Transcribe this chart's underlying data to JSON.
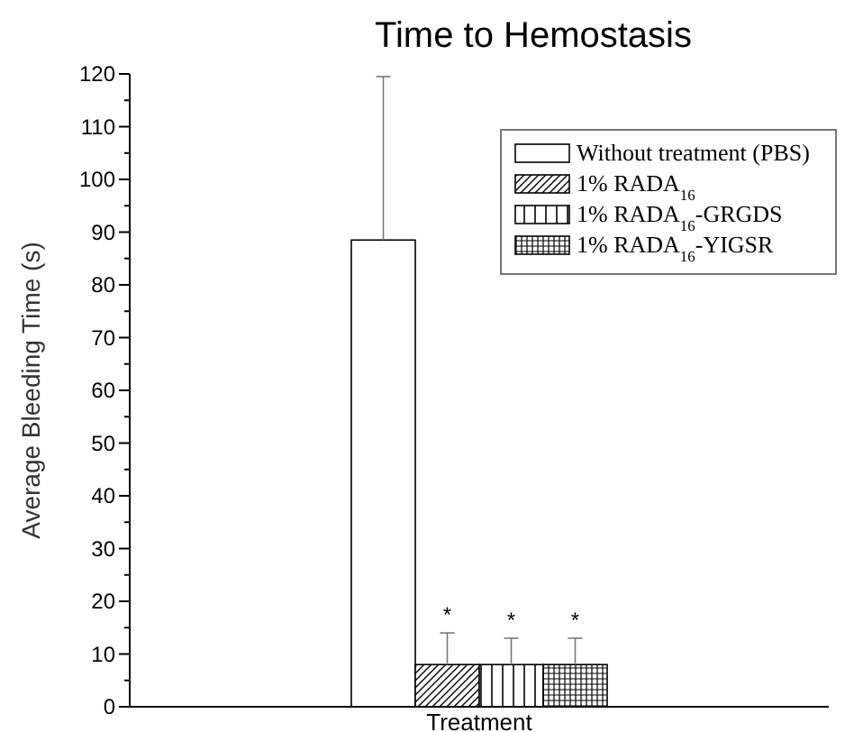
{
  "chart_data": {
    "type": "bar",
    "title": "Time to Hemostasis",
    "ylabel": "Average Bleeding Time (s)",
    "categories": [
      "Treatment"
    ],
    "series": [
      {
        "name": "Without treatment (PBS)",
        "color": "#ffffff",
        "values": [
          88.5
        ],
        "errors": [
          [
            88.5,
            119.5
          ]
        ]
      },
      {
        "name": "1% RADA$_{16}$",
        "color": "#000000",
        "values": [
          8
        ],
        "errors": [
          [
            8,
            14
          ]
        ]
      },
      {
        "name": "1% RADA$_{16}$-GRGDS",
        "color": "#000000",
        "values": [
          8
        ],
        "errors": [
          [
            8,
            13
          ]
        ]
      },
      {
        "name": "1% RADA$_{16}$-YIGSR",
        "color": "#000000",
        "values": [
          8
        ],
        "errors": [
          [
            8,
            13
          ]
        ]
      }
    ],
    "annotations": [
      "*",
      "*",
      "*"
    ],
    "ylim": [
      0,
      120
    ],
    "yticks": [
      0,
      10,
      20,
      30,
      40,
      50,
      60,
      70,
      80,
      90,
      100,
      110,
      120
    ],
    "legend": "top right"
  }
}
